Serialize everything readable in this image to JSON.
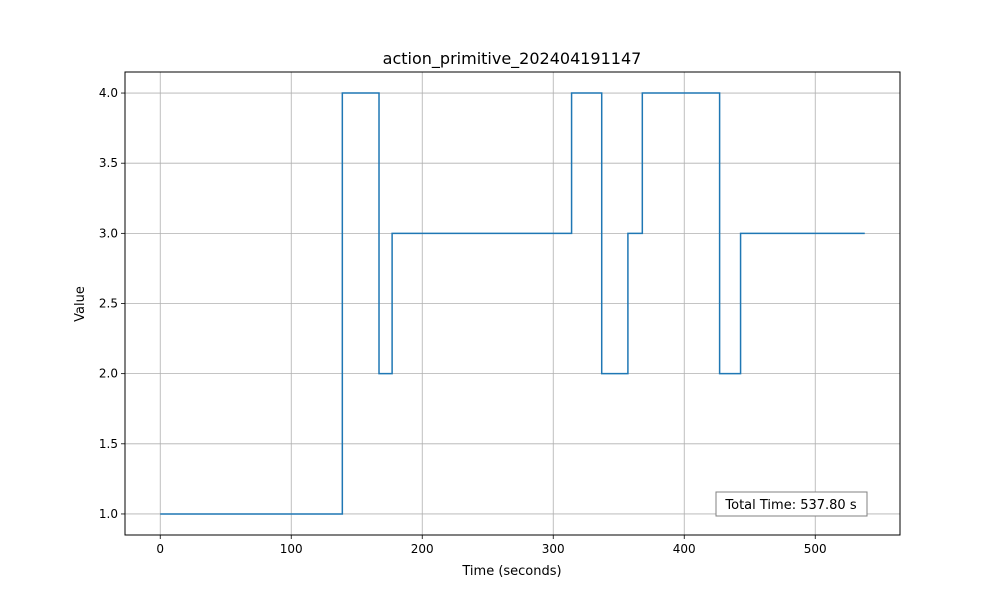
{
  "chart_data": {
    "type": "line",
    "step": true,
    "title": "action_primitive_202404191147",
    "xlabel": "Time (seconds)",
    "ylabel": "Value",
    "xlim": [
      -26.9,
      564.7
    ],
    "ylim": [
      0.85,
      4.15
    ],
    "xticks": [
      0,
      100,
      200,
      300,
      400,
      500
    ],
    "yticks": [
      1.0,
      1.5,
      2.0,
      2.5,
      3.0,
      3.5,
      4.0
    ],
    "grid": true,
    "series": [
      {
        "color": "#1f77b4",
        "x": [
          0,
          139,
          139,
          167,
          167,
          177,
          177,
          314,
          314,
          337,
          337,
          357,
          357,
          368,
          368,
          427,
          427,
          443,
          443,
          537.8
        ],
        "y": [
          1,
          1,
          4,
          4,
          2,
          2,
          3,
          3,
          4,
          4,
          2,
          2,
          3,
          3,
          4,
          4,
          2,
          2,
          3,
          3
        ]
      }
    ],
    "annotation": "Total Time: 537.80 s",
    "annotation_position": "bottom-right"
  }
}
